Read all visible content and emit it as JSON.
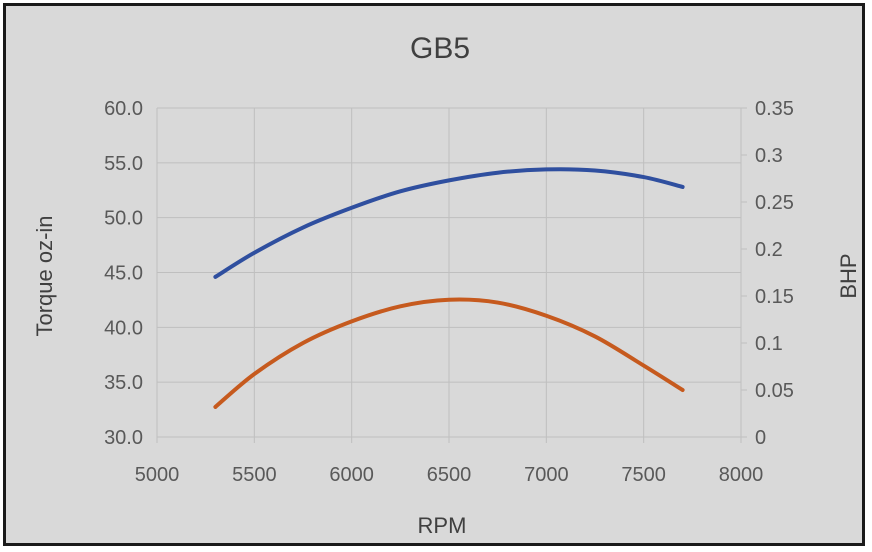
{
  "colors": {
    "background": "#d9d9d9",
    "plot_background": "#d9d9d9",
    "gridline": "#bfbfbf",
    "torque_series": "#2f4f9f",
    "bhp_series": "#c65a1e",
    "text": "#595959"
  },
  "chart_data": {
    "type": "line",
    "title": "GB5",
    "xlabel": "RPM",
    "ylabel": "Torque oz-in",
    "y2label": "BHP",
    "xlim": [
      5000,
      8000
    ],
    "ylim": [
      30.0,
      60.0
    ],
    "y2lim": [
      0,
      0.35
    ],
    "x_ticks": [
      "5000",
      "5500",
      "6000",
      "6500",
      "7000",
      "7500",
      "8000"
    ],
    "y_ticks": [
      "30.0",
      "35.0",
      "40.0",
      "45.0",
      "50.0",
      "55.0",
      "60.0"
    ],
    "y2_ticks": [
      "0",
      "0.05",
      "0.1",
      "0.15",
      "0.2",
      "0.25",
      "0.3",
      "0.35"
    ],
    "grid": true,
    "legend": "none",
    "series": [
      {
        "axis": "left",
        "color": "#2f4f9f",
        "x": [
          5300,
          5500,
          5750,
          6000,
          6250,
          6500,
          6750,
          7000,
          7250,
          7500,
          7700
        ],
        "values": [
          44.6,
          46.8,
          49.1,
          50.9,
          52.4,
          53.4,
          54.1,
          54.4,
          54.3,
          53.7,
          52.8
        ]
      },
      {
        "axis": "right",
        "color": "#c65a1e",
        "x": [
          5300,
          5500,
          5750,
          6000,
          6250,
          6500,
          6750,
          7000,
          7250,
          7500,
          7700
        ],
        "values": [
          0.032,
          0.067,
          0.1,
          0.123,
          0.139,
          0.146,
          0.143,
          0.129,
          0.107,
          0.076,
          0.05
        ]
      }
    ]
  }
}
